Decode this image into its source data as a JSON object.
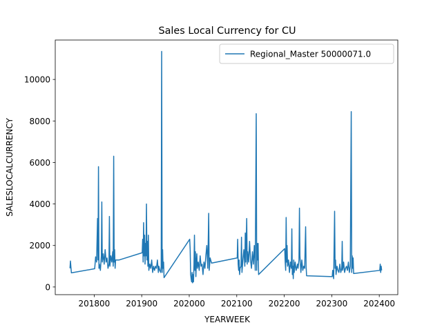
{
  "chart_data": {
    "type": "line",
    "title": "Sales Local Currency for CU",
    "xlabel": "YEARWEEK",
    "ylabel": "SALESLOCALCURRENCY",
    "xlim": [
      201718,
      202439
    ],
    "ylim": [
      -370,
      11900
    ],
    "xticks": [
      201800,
      201900,
      202000,
      202100,
      202200,
      202300,
      202400
    ],
    "yticks": [
      0,
      2000,
      4000,
      6000,
      8000,
      10000
    ],
    "legend": "upper right",
    "series": [
      {
        "name": "Regional_Master 50000071.0",
        "color": "#1f77b4",
        "x": [
          201749,
          201750,
          201751,
          201752,
          201801,
          201803,
          201805,
          201807,
          201808,
          201809,
          201810,
          201811,
          201813,
          201815,
          201816,
          201817,
          201819,
          201821,
          201823,
          201825,
          201827,
          201829,
          201831,
          201832,
          201833,
          201835,
          201837,
          201839,
          201840,
          201841,
          201842,
          201843,
          201844,
          201845,
          201852,
          201901,
          201902,
          201903,
          201904,
          201905,
          201906,
          201907,
          201908,
          201909,
          201910,
          201911,
          201912,
          201913,
          201914,
          201915,
          201917,
          201919,
          201921,
          201923,
          201925,
          201927,
          201929,
          201931,
          201933,
          201935,
          201936,
          201938,
          201940,
          201941,
          201942,
          201943,
          201944,
          201945,
          201946,
          201947,
          202001,
          202002,
          202003,
          202004,
          202005,
          202006,
          202007,
          202008,
          202009,
          202010,
          202011,
          202012,
          202013,
          202014,
          202015,
          202016,
          202017,
          202019,
          202021,
          202023,
          202025,
          202027,
          202029,
          202030,
          202031,
          202033,
          202035,
          202037,
          202039,
          202041,
          202042,
          202044,
          202047,
          202101,
          202102,
          202103,
          202104,
          202105,
          202106,
          202107,
          202109,
          202110,
          202111,
          202113,
          202115,
          202117,
          202118,
          202119,
          202121,
          202122,
          202123,
          202125,
          202127,
          202129,
          202131,
          202133,
          202135,
          202137,
          202139,
          202141,
          202142,
          202143,
          202144,
          202145,
          202146,
          202201,
          202202,
          202203,
          202204,
          202205,
          202206,
          202207,
          202209,
          202211,
          202213,
          202215,
          202216,
          202217,
          202218,
          202219,
          202220,
          202221,
          202223,
          202225,
          202228,
          202229,
          202231,
          202232,
          202233,
          202235,
          202237,
          202239,
          202241,
          202243,
          202245,
          202246,
          202247,
          202301,
          202302,
          202304,
          202306,
          202307,
          202308,
          202309,
          202311,
          202313,
          202315,
          202317,
          202319,
          202321,
          202322,
          202323,
          202325,
          202327,
          202329,
          202331,
          202333,
          202335,
          202337,
          202339,
          202341,
          202342,
          202343,
          202344,
          202345,
          202346,
          202401,
          202402,
          202403,
          202404,
          202405
        ],
        "values": [
          900,
          1250,
          950,
          680,
          880,
          1450,
          1200,
          3300,
          1300,
          5800,
          900,
          1100,
          800,
          1500,
          4100,
          1200,
          1600,
          1100,
          1800,
          1200,
          1400,
          900,
          1100,
          3400,
          1000,
          1500,
          1200,
          1700,
          1000,
          6300,
          1200,
          1800,
          900,
          1300,
          1300,
          1650,
          2300,
          1200,
          3100,
          1500,
          2500,
          1100,
          2100,
          1500,
          4000,
          1300,
          2200,
          1000,
          2500,
          800,
          1100,
          900,
          1300,
          700,
          1000,
          800,
          1000,
          900,
          1300,
          700,
          1000,
          800,
          700,
          1000,
          11350,
          700,
          1800,
          900,
          1200,
          450,
          2300,
          1800,
          600,
          400,
          250,
          700,
          200,
          600,
          250,
          1100,
          2500,
          800,
          1700,
          500,
          1200,
          1600,
          900,
          1200,
          800,
          1500,
          1000,
          1100,
          600,
          900,
          1200,
          900,
          1500,
          2000,
          900,
          3550,
          800,
          1400,
          1150,
          1400,
          2300,
          1100,
          800,
          1300,
          600,
          900,
          1000,
          2400,
          700,
          1300,
          1800,
          1000,
          2600,
          1200,
          3300,
          1100,
          1700,
          1200,
          2200,
          1300,
          900,
          1700,
          1100,
          2000,
          800,
          8350,
          800,
          2100,
          1300,
          2100,
          600,
          1850,
          1200,
          800,
          3350,
          1200,
          2000,
          1000,
          1300,
          700,
          1200,
          900,
          2800,
          600,
          1000,
          400,
          1300,
          700,
          1200,
          800,
          1100,
          900,
          1300,
          3800,
          1500,
          700,
          1300,
          800,
          1000,
          900,
          2900,
          1000,
          540,
          500,
          800,
          400,
          3650,
          900,
          1300,
          600,
          1000,
          800,
          700,
          1100,
          700,
          900,
          2200,
          800,
          1200,
          700,
          900,
          1000,
          800,
          1200,
          700,
          1000,
          8450,
          700,
          1500,
          900,
          1400,
          650,
          800,
          1100,
          700,
          1000,
          800
        ]
      }
    ]
  }
}
